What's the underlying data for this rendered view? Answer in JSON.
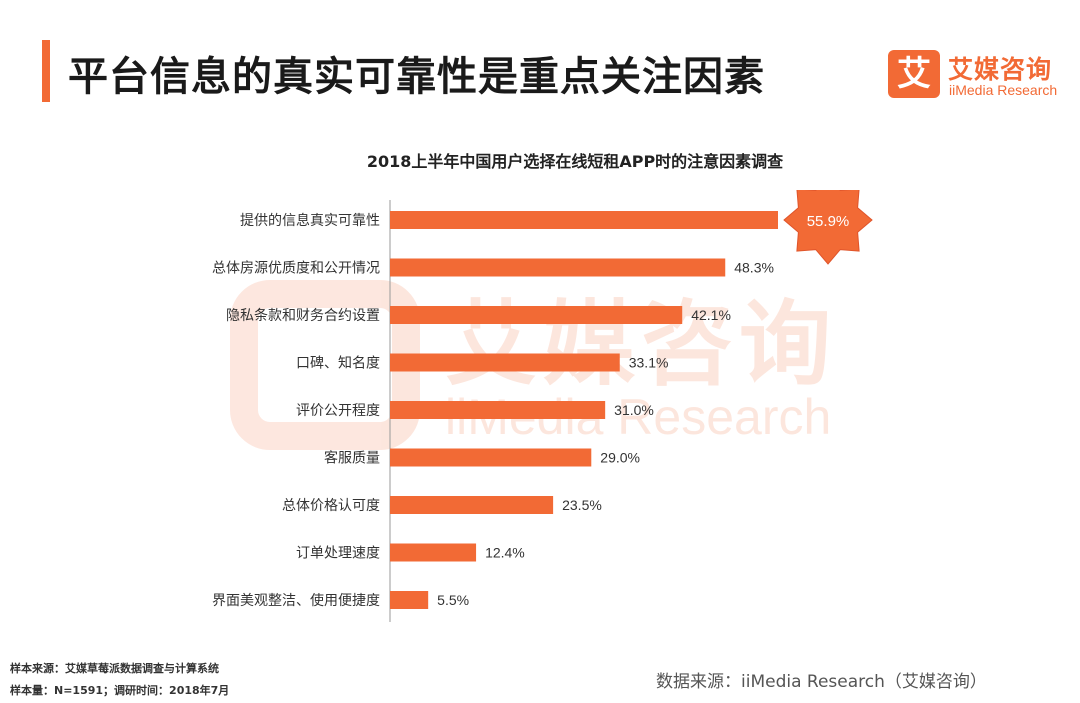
{
  "header": {
    "title": "平台信息的真实可靠性是重点关注因素"
  },
  "logo": {
    "glyph": "艾",
    "name": "艾媒咨询",
    "sub": "iiMedia Research"
  },
  "watermark": {
    "name": "艾媒咨询",
    "sub": "iiMedia Research"
  },
  "footer": {
    "sample_source": "样本来源：艾媒草莓派数据调查与计算系统",
    "sample_size": "样本量：N=1591；调研时间：2018年7月",
    "data_source": "数据来源：iiMedia Research（艾媒咨询）"
  },
  "colors": {
    "accent": "#f26a35",
    "bar": "#f26a35",
    "axis": "#999999"
  },
  "chart_data": {
    "type": "bar",
    "orientation": "horizontal",
    "title": "2018上半年中国用户选择在线短租APP时的注意因素调查",
    "categories": [
      "提供的信息真实可靠性",
      "总体房源优质度和公开情况",
      "隐私条款和财务合约设置",
      "口碑、知名度",
      "评价公开程度",
      "客服质量",
      "总体价格认可度",
      "订单处理速度",
      "界面美观整洁、使用便捷度"
    ],
    "values": [
      55.9,
      48.3,
      42.1,
      33.1,
      31.0,
      29.0,
      23.5,
      12.4,
      5.5
    ],
    "value_labels": [
      "55.9%",
      "48.3%",
      "42.1%",
      "33.1%",
      "31.0%",
      "29.0%",
      "23.5%",
      "12.4%",
      "5.5%"
    ],
    "highlight_index": 0,
    "xlim": [
      0,
      55.9
    ],
    "grid": false,
    "legend": "none"
  }
}
